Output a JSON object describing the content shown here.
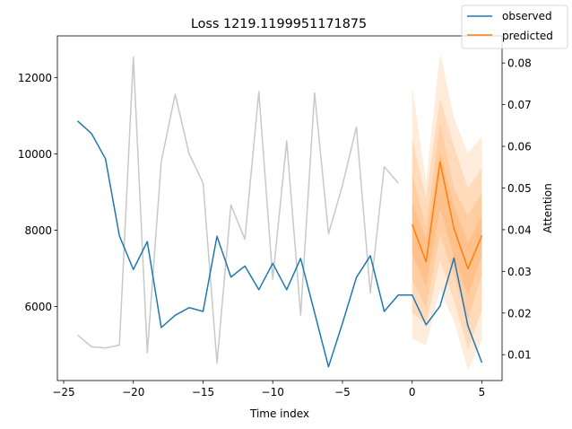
{
  "chart_data": {
    "type": "line",
    "title": "Loss 1219.1199951171875",
    "xlabel": "Time index",
    "ylabel_right": "Attention",
    "xlim": [
      -25.45,
      6.45
    ],
    "ylim_left": [
      4060,
      13090
    ],
    "ylim_right": [
      0.0038,
      0.0865
    ],
    "x_ticks": [
      -25,
      -20,
      -15,
      -10,
      -5,
      0,
      5
    ],
    "y_left_ticks": [
      6000,
      8000,
      10000,
      12000
    ],
    "y_right_ticks": [
      0.01,
      0.02,
      0.03,
      0.04,
      0.05,
      0.06,
      0.07,
      0.08
    ],
    "legend": {
      "position": "top-right",
      "entries": [
        "observed",
        "predicted"
      ]
    },
    "colors": {
      "observed": "#1f77b4",
      "predicted": "#ff7f0e",
      "attention": "#c8c8c8",
      "band": "#ff7f0e"
    },
    "series": [
      {
        "name": "observed",
        "axis": "left",
        "x": [
          -24,
          -23,
          -22,
          -21,
          -20,
          -19,
          -18,
          -17,
          -16,
          -15,
          -14,
          -13,
          -12,
          -11,
          -10,
          -9,
          -8,
          -7,
          -6,
          -5,
          -4,
          -3,
          -2,
          -1,
          0,
          1,
          2,
          3,
          4,
          5
        ],
        "values": [
          10860,
          10530,
          9870,
          7850,
          6970,
          7700,
          5450,
          5770,
          5970,
          5870,
          7840,
          6770,
          7060,
          6440,
          7130,
          6440,
          7260,
          5840,
          4420,
          5560,
          6760,
          7330,
          5870,
          6300,
          6300,
          5520,
          6010,
          7270,
          5490,
          4530
        ]
      },
      {
        "name": "predicted",
        "axis": "left",
        "x": [
          0,
          1,
          2,
          3,
          4,
          5
        ],
        "values": [
          8150,
          7170,
          9790,
          8040,
          6990,
          7860
        ]
      }
    ],
    "attention": {
      "axis": "right",
      "x": [
        -24,
        -23,
        -22,
        -21,
        -20,
        -19,
        -18,
        -17,
        -16,
        -15,
        -14,
        -13,
        -12,
        -11,
        -10,
        -9,
        -8,
        -7,
        -6,
        -5,
        -4,
        -3,
        -2,
        -1
      ],
      "values": [
        0.0147,
        0.0119,
        0.0116,
        0.0123,
        0.0814,
        0.0105,
        0.0563,
        0.0725,
        0.0582,
        0.0512,
        0.008,
        0.0459,
        0.0377,
        0.0731,
        0.0281,
        0.0613,
        0.0195,
        0.0728,
        0.039,
        0.0506,
        0.0646,
        0.0248,
        0.0551,
        0.0512
      ]
    },
    "quantile_bands": {
      "x": [
        0,
        1,
        2,
        3,
        4,
        5
      ],
      "bands": [
        {
          "lower": [
            5150,
            4990,
            6430,
            5620,
            4330,
            5120
          ],
          "upper": [
            11770,
            9260,
            12650,
            10940,
            10020,
            10450
          ]
        },
        {
          "lower": [
            5830,
            5530,
            7210,
            6160,
            4880,
            5900
          ],
          "upper": [
            10400,
            8840,
            11470,
            10200,
            9090,
            9630
          ]
        },
        {
          "lower": [
            6690,
            5960,
            7890,
            6820,
            5650,
            6830
          ],
          "upper": [
            9470,
            8070,
            10790,
            9090,
            8390,
            8980
          ]
        },
        {
          "lower": [
            7370,
            6510,
            8560,
            7300,
            6290,
            7320
          ],
          "upper": [
            8710,
            7740,
            10050,
            8640,
            7680,
            8390
          ]
        }
      ]
    }
  }
}
